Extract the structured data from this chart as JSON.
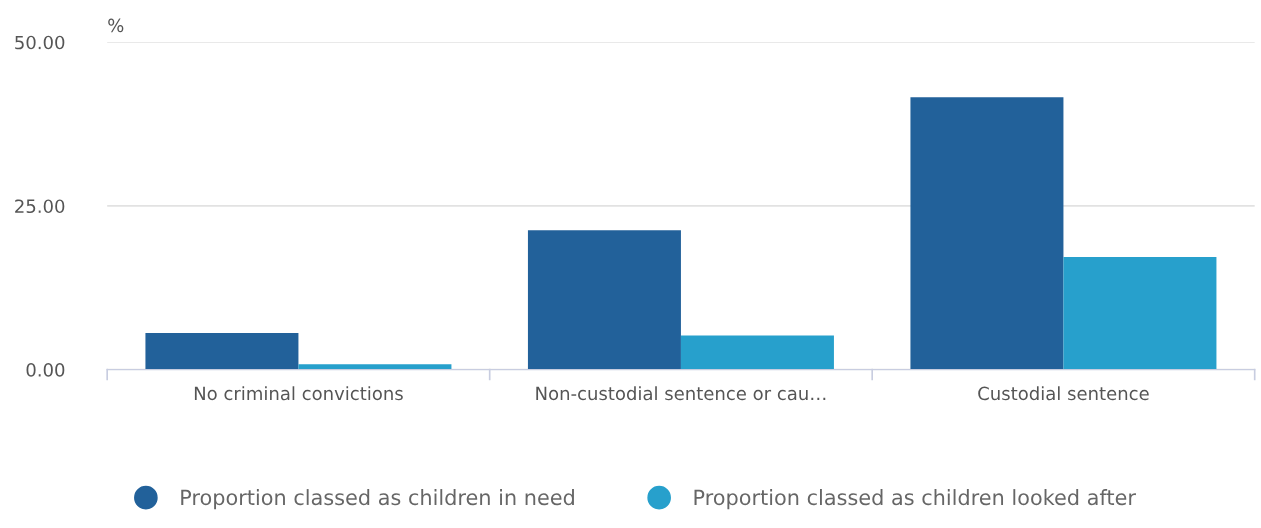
{
  "chart_data": {
    "type": "bar",
    "ylabel": "%",
    "categories": [
      "No criminal convictions",
      "Non-custodial sentence or cau…",
      "Custodial sentence"
    ],
    "series": [
      {
        "name": "Proportion classed as children in need",
        "color": "#22619a",
        "values": [
          5.6,
          21.3,
          41.6
        ]
      },
      {
        "name": "Proportion classed as children looked after",
        "color": "#27a0cc",
        "values": [
          0.8,
          5.2,
          17.2
        ]
      }
    ],
    "ylim": [
      0,
      50
    ],
    "yticks": [
      {
        "value": 0,
        "label": "0.00"
      },
      {
        "value": 25,
        "label": "25.00"
      },
      {
        "value": 50,
        "label": "50.00"
      }
    ],
    "grid": "y",
    "legend": "bottom"
  }
}
